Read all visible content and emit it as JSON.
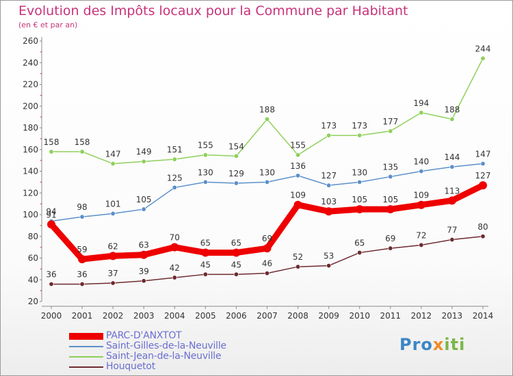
{
  "title": "Evolution des Impôts locaux pour la Commune par Habitant",
  "subtitle": "(en € et par an)",
  "logo": {
    "part1": "Pro",
    "part2": "x",
    "part3": "iti"
  },
  "chart_data": {
    "type": "line",
    "title": "Evolution des Impôts locaux pour la Commune par Habitant",
    "subtitle": "(en € et par an)",
    "x": [
      "2000",
      "2001",
      "2002",
      "2003",
      "2004",
      "2005",
      "2006",
      "2007",
      "2008",
      "2009",
      "2010",
      "2011",
      "2012",
      "2013",
      "2014"
    ],
    "ylim": [
      20,
      260
    ],
    "yticks": [
      20,
      40,
      60,
      80,
      100,
      120,
      140,
      160,
      180,
      200,
      220,
      240,
      260
    ],
    "grid": false,
    "legend_position": "bottom-left",
    "series": [
      {
        "name": "Saint-Jean-de-la-Neuville",
        "color": "#8ed05a",
        "values": [
          158,
          158,
          147,
          149,
          151,
          155,
          154,
          188,
          155,
          173,
          173,
          177,
          194,
          188,
          244
        ]
      },
      {
        "name": "Saint-Gilles-de-la-Neuville",
        "color": "#5b8fca",
        "values": [
          94,
          98,
          101,
          105,
          125,
          130,
          129,
          130,
          136,
          127,
          130,
          135,
          140,
          144,
          147
        ]
      },
      {
        "name": "Houquetot",
        "color": "#6e2a30",
        "values": [
          36,
          36,
          37,
          39,
          42,
          45,
          45,
          46,
          52,
          53,
          65,
          69,
          72,
          77,
          80
        ]
      },
      {
        "name": "PARC-D'ANXTOT",
        "color": "#ee0000",
        "values": [
          91,
          59,
          62,
          63,
          70,
          65,
          65,
          69,
          109,
          103,
          105,
          105,
          109,
          113,
          127
        ]
      }
    ],
    "legend_order": [
      "PARC-D'ANXTOT",
      "Saint-Gilles-de-la-Neuville",
      "Saint-Jean-de-la-Neuville",
      "Houquetot"
    ]
  }
}
